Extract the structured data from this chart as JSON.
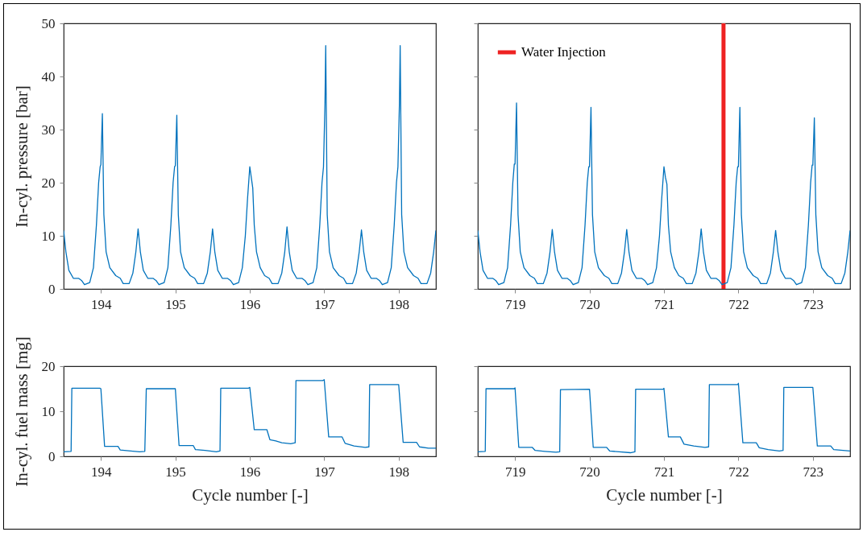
{
  "chart_data": [
    {
      "type": "line",
      "ylabel": "In-cyl. pressure [bar]",
      "xlim": [
        193.5,
        198.5
      ],
      "xticks": [
        194,
        195,
        196,
        197,
        198
      ],
      "ylim": [
        0,
        50
      ],
      "yticks": [
        0,
        10,
        20,
        30,
        40,
        50
      ],
      "series": [
        {
          "color": "#0072bd",
          "x": [
            193.5,
            193.53,
            193.57,
            193.63,
            193.7,
            193.74,
            193.78,
            193.85,
            193.9,
            193.94,
            193.97,
            193.99,
            194.0,
            194.02,
            194.04,
            194.07,
            194.12,
            194.2,
            194.26,
            194.3,
            194.38,
            194.43,
            194.47,
            194.5,
            194.53,
            194.57,
            194.63,
            194.7,
            194.74,
            194.78,
            194.85,
            194.9,
            194.94,
            194.97,
            194.99,
            195.0,
            195.02,
            195.04,
            195.07,
            195.12,
            195.2,
            195.26,
            195.3,
            195.38,
            195.43,
            195.47,
            195.5,
            195.53,
            195.57,
            195.63,
            195.7,
            195.74,
            195.78,
            195.85,
            195.9,
            195.94,
            195.97,
            196.0,
            196.02,
            196.04,
            196.06,
            196.09,
            196.14,
            196.2,
            196.26,
            196.3,
            196.38,
            196.43,
            196.47,
            196.5,
            196.53,
            196.57,
            196.63,
            196.7,
            196.74,
            196.78,
            196.85,
            196.9,
            196.94,
            196.97,
            196.99,
            197.01,
            197.02,
            197.04,
            197.07,
            197.12,
            197.2,
            197.26,
            197.3,
            197.38,
            197.43,
            197.47,
            197.5,
            197.53,
            197.57,
            197.63,
            197.7,
            197.74,
            197.78,
            197.85,
            197.9,
            197.94,
            197.97,
            197.99,
            198.01,
            198.02,
            198.04,
            198.07,
            198.12,
            198.2,
            198.26,
            198.3,
            198.38,
            198.43,
            198.47,
            198.5
          ],
          "values": [
            11,
            7,
            3.5,
            2.0,
            2.0,
            1.6,
            0.8,
            1.2,
            4,
            12,
            20,
            23,
            23.4,
            33,
            14,
            7,
            4,
            2.5,
            2.0,
            1.0,
            1.0,
            3,
            7,
            11.3,
            7,
            3.5,
            2.0,
            2.0,
            1.6,
            0.8,
            1.2,
            4,
            12,
            20,
            23,
            23.2,
            32.7,
            14,
            7,
            4,
            2.5,
            2.0,
            1.0,
            1.0,
            3,
            7,
            11.3,
            7,
            3.5,
            2.0,
            2.0,
            1.6,
            0.8,
            1.2,
            4,
            10,
            17,
            23,
            21,
            19,
            12,
            7,
            4,
            2.5,
            2.0,
            1.0,
            1.0,
            3,
            7,
            11.7,
            7,
            3.5,
            2.0,
            2.0,
            1.6,
            0.8,
            1.2,
            4,
            12,
            20,
            23,
            35,
            45.8,
            14,
            7,
            4,
            2.5,
            2.0,
            1.0,
            1.0,
            3,
            7,
            11.1,
            7,
            3.5,
            2.0,
            2.0,
            1.6,
            0.8,
            1.2,
            4,
            12,
            20,
            23,
            35,
            45.8,
            14,
            7,
            4,
            2.5,
            2.0,
            1.0,
            1.0,
            3,
            7,
            11
          ]
        }
      ]
    },
    {
      "type": "line",
      "xlim": [
        718.5,
        723.5
      ],
      "xticks": [
        719,
        720,
        721,
        722,
        723
      ],
      "ylim": [
        0,
        50
      ],
      "yticks": [
        0,
        10,
        20,
        30,
        40,
        50
      ],
      "tick_labels": "x",
      "legend": "top left",
      "series": [
        {
          "name": "Water Injection",
          "color": "#ee2222",
          "x": [
            721.8,
            721.8
          ],
          "values": [
            0,
            50
          ]
        },
        {
          "color": "#0072bd",
          "x": [
            718.5,
            718.53,
            718.57,
            718.63,
            718.7,
            718.74,
            718.78,
            718.85,
            718.9,
            718.94,
            718.97,
            718.99,
            719.0,
            719.02,
            719.04,
            719.07,
            719.12,
            719.2,
            719.26,
            719.3,
            719.38,
            719.43,
            719.47,
            719.5,
            719.53,
            719.57,
            719.63,
            719.7,
            719.74,
            719.78,
            719.85,
            719.9,
            719.94,
            719.97,
            719.99,
            720.0,
            720.02,
            720.04,
            720.07,
            720.12,
            720.2,
            720.26,
            720.3,
            720.38,
            720.43,
            720.47,
            720.5,
            720.53,
            720.57,
            720.63,
            720.7,
            720.74,
            720.78,
            720.85,
            720.9,
            720.94,
            720.97,
            721.0,
            721.02,
            721.04,
            721.06,
            721.09,
            721.14,
            721.2,
            721.26,
            721.3,
            721.38,
            721.43,
            721.47,
            721.5,
            721.53,
            721.57,
            721.63,
            721.7,
            721.74,
            721.78,
            721.85,
            721.9,
            721.94,
            721.97,
            721.99,
            722.0,
            722.02,
            722.04,
            722.07,
            722.12,
            722.2,
            722.26,
            722.3,
            722.38,
            722.43,
            722.47,
            722.5,
            722.53,
            722.57,
            722.63,
            722.7,
            722.74,
            722.78,
            722.85,
            722.9,
            722.94,
            722.97,
            722.99,
            723.0,
            723.02,
            723.04,
            723.07,
            723.12,
            723.2,
            723.26,
            723.3,
            723.38,
            723.43,
            723.47,
            723.5
          ],
          "values": [
            11,
            7,
            3.5,
            2.0,
            2.0,
            1.6,
            0.8,
            1.2,
            4,
            12,
            20,
            23.5,
            23.5,
            35,
            14,
            7,
            4,
            2.5,
            2.0,
            1.0,
            1.0,
            3,
            7,
            11.2,
            7,
            3.5,
            2.0,
            2.0,
            1.6,
            0.8,
            1.2,
            4,
            12,
            20,
            23,
            23,
            34.2,
            14,
            7,
            4,
            2.5,
            2.0,
            1.0,
            1.0,
            3,
            7,
            11.2,
            7,
            3.5,
            2.0,
            2.0,
            1.6,
            0.8,
            1.2,
            4,
            10,
            17,
            23,
            21,
            19.7,
            12,
            7,
            4,
            2.5,
            2.0,
            1.0,
            1.0,
            3,
            7,
            11.3,
            7,
            3.5,
            2.0,
            2.0,
            1.6,
            0.8,
            1.2,
            4,
            12,
            20,
            23,
            23,
            34.2,
            14,
            7,
            4,
            2.5,
            2.0,
            1.0,
            1.0,
            3,
            7,
            11,
            7,
            3.5,
            2.0,
            2.0,
            1.6,
            0.8,
            1.2,
            4,
            12,
            20,
            23.3,
            23.3,
            32.2,
            14,
            7,
            4,
            2.5,
            2.0,
            1.0,
            1.0,
            3,
            7,
            11
          ]
        }
      ]
    },
    {
      "type": "line",
      "ylabel": "In-cyl. fuel mass [mg]",
      "xlabel": "Cycle number [-]",
      "xlim": [
        193.5,
        198.5
      ],
      "xticks": [
        194,
        195,
        196,
        197,
        198
      ],
      "ylim": [
        0,
        20
      ],
      "yticks": [
        0,
        10,
        20
      ],
      "series": [
        {
          "color": "#0072bd",
          "x": [
            193.5,
            193.6,
            193.61,
            193.99,
            194.0,
            194.05,
            194.23,
            194.26,
            194.4,
            194.52,
            194.59,
            194.61,
            195.0,
            195.05,
            195.24,
            195.27,
            195.4,
            195.55,
            195.6,
            195.61,
            195.98,
            196.0,
            196.06,
            196.23,
            196.27,
            196.35,
            196.43,
            196.55,
            196.61,
            196.62,
            196.98,
            197.0,
            197.06,
            197.24,
            197.28,
            197.4,
            197.55,
            197.6,
            197.61,
            198.0,
            198.06,
            198.24,
            198.28,
            198.4,
            198.5
          ],
          "values": [
            1.0,
            1.1,
            15.1,
            15.1,
            15.0,
            2.2,
            2.2,
            1.4,
            1.2,
            1.0,
            1.1,
            15.0,
            15.0,
            2.4,
            2.4,
            1.5,
            1.3,
            1.0,
            1.2,
            15.1,
            15.1,
            15.3,
            5.9,
            5.9,
            3.7,
            3.4,
            3.0,
            2.8,
            3.0,
            16.8,
            16.8,
            17.0,
            4.3,
            4.3,
            2.9,
            2.3,
            2.0,
            2.1,
            15.9,
            15.9,
            3.1,
            3.1,
            2.1,
            1.8,
            1.8
          ]
        }
      ]
    },
    {
      "type": "line",
      "xlabel": "Cycle number [-]",
      "xlim": [
        718.5,
        723.5
      ],
      "xticks": [
        719,
        720,
        721,
        722,
        723
      ],
      "ylim": [
        0,
        20
      ],
      "yticks": [
        0,
        10,
        20
      ],
      "tick_labels": "x",
      "series": [
        {
          "color": "#0072bd",
          "x": [
            718.5,
            718.6,
            718.61,
            718.99,
            719.0,
            719.05,
            719.23,
            719.27,
            719.4,
            719.55,
            719.6,
            719.61,
            720.0,
            720.05,
            720.23,
            720.27,
            720.4,
            720.55,
            720.61,
            720.62,
            720.99,
            721.0,
            721.06,
            721.22,
            721.27,
            721.4,
            721.55,
            721.6,
            721.61,
            721.99,
            722.0,
            722.06,
            722.24,
            722.28,
            722.4,
            722.55,
            722.6,
            722.61,
            723.0,
            723.06,
            723.24,
            723.28,
            723.5
          ],
          "values": [
            1.0,
            1.1,
            15.0,
            15.0,
            15.2,
            2.0,
            2.0,
            1.3,
            1.1,
            0.9,
            1.0,
            14.8,
            14.9,
            2.0,
            2.0,
            1.2,
            1.0,
            0.8,
            1.0,
            14.9,
            14.9,
            15.1,
            4.3,
            4.3,
            2.7,
            2.3,
            2.0,
            2.1,
            15.9,
            15.9,
            16.2,
            3.0,
            3.0,
            1.9,
            1.5,
            1.2,
            1.3,
            15.3,
            15.3,
            2.3,
            2.3,
            1.5,
            1.2
          ]
        }
      ]
    }
  ]
}
